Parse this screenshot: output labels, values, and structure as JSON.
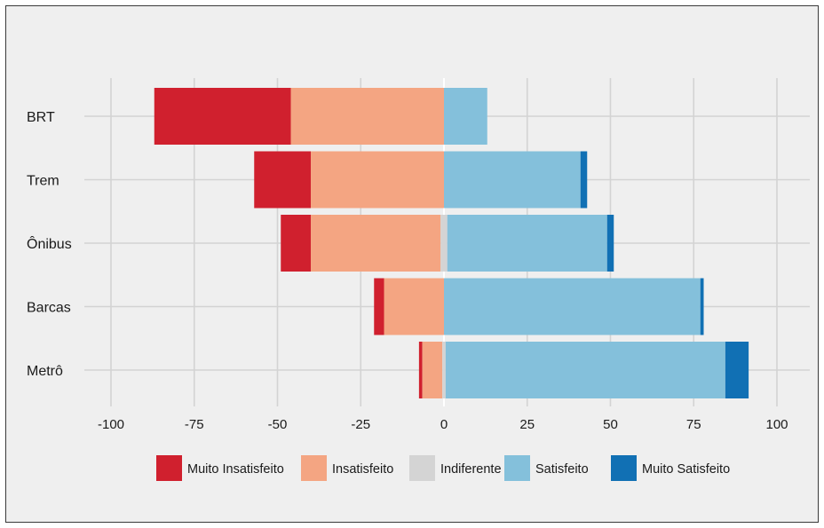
{
  "chart_data": {
    "type": "bar",
    "orientation": "horizontal",
    "stacked": "diverging",
    "categories": [
      "BRT",
      "Trem",
      "Ônibus",
      "Barcas",
      "Metrô"
    ],
    "xlim": [
      -100,
      100
    ],
    "xticks": [
      -100,
      -75,
      -50,
      -25,
      0,
      25,
      50,
      75,
      100
    ],
    "xtick_labels": [
      "-100",
      "-75",
      "-50",
      "-25",
      "0",
      "25",
      "50",
      "75",
      "100"
    ],
    "grid": true,
    "legend_position": "bottom",
    "series": [
      {
        "name": "Muito Insatisfeito",
        "color": "#d0202e",
        "values": [
          41,
          17,
          9,
          3,
          1
        ]
      },
      {
        "name": "Insatisfeito",
        "color": "#f4a582",
        "values": [
          46,
          40,
          39,
          18,
          6
        ]
      },
      {
        "name": "Indiferente",
        "color": "#d4d4d4",
        "values": [
          0,
          0,
          2,
          0,
          1
        ]
      },
      {
        "name": "Satisfeito",
        "color": "#84c0db",
        "values": [
          13,
          41,
          48,
          77,
          84
        ]
      },
      {
        "name": "Muito Satisfeito",
        "color": "#1170b4",
        "values": [
          0,
          2,
          2,
          1,
          7
        ]
      }
    ]
  }
}
